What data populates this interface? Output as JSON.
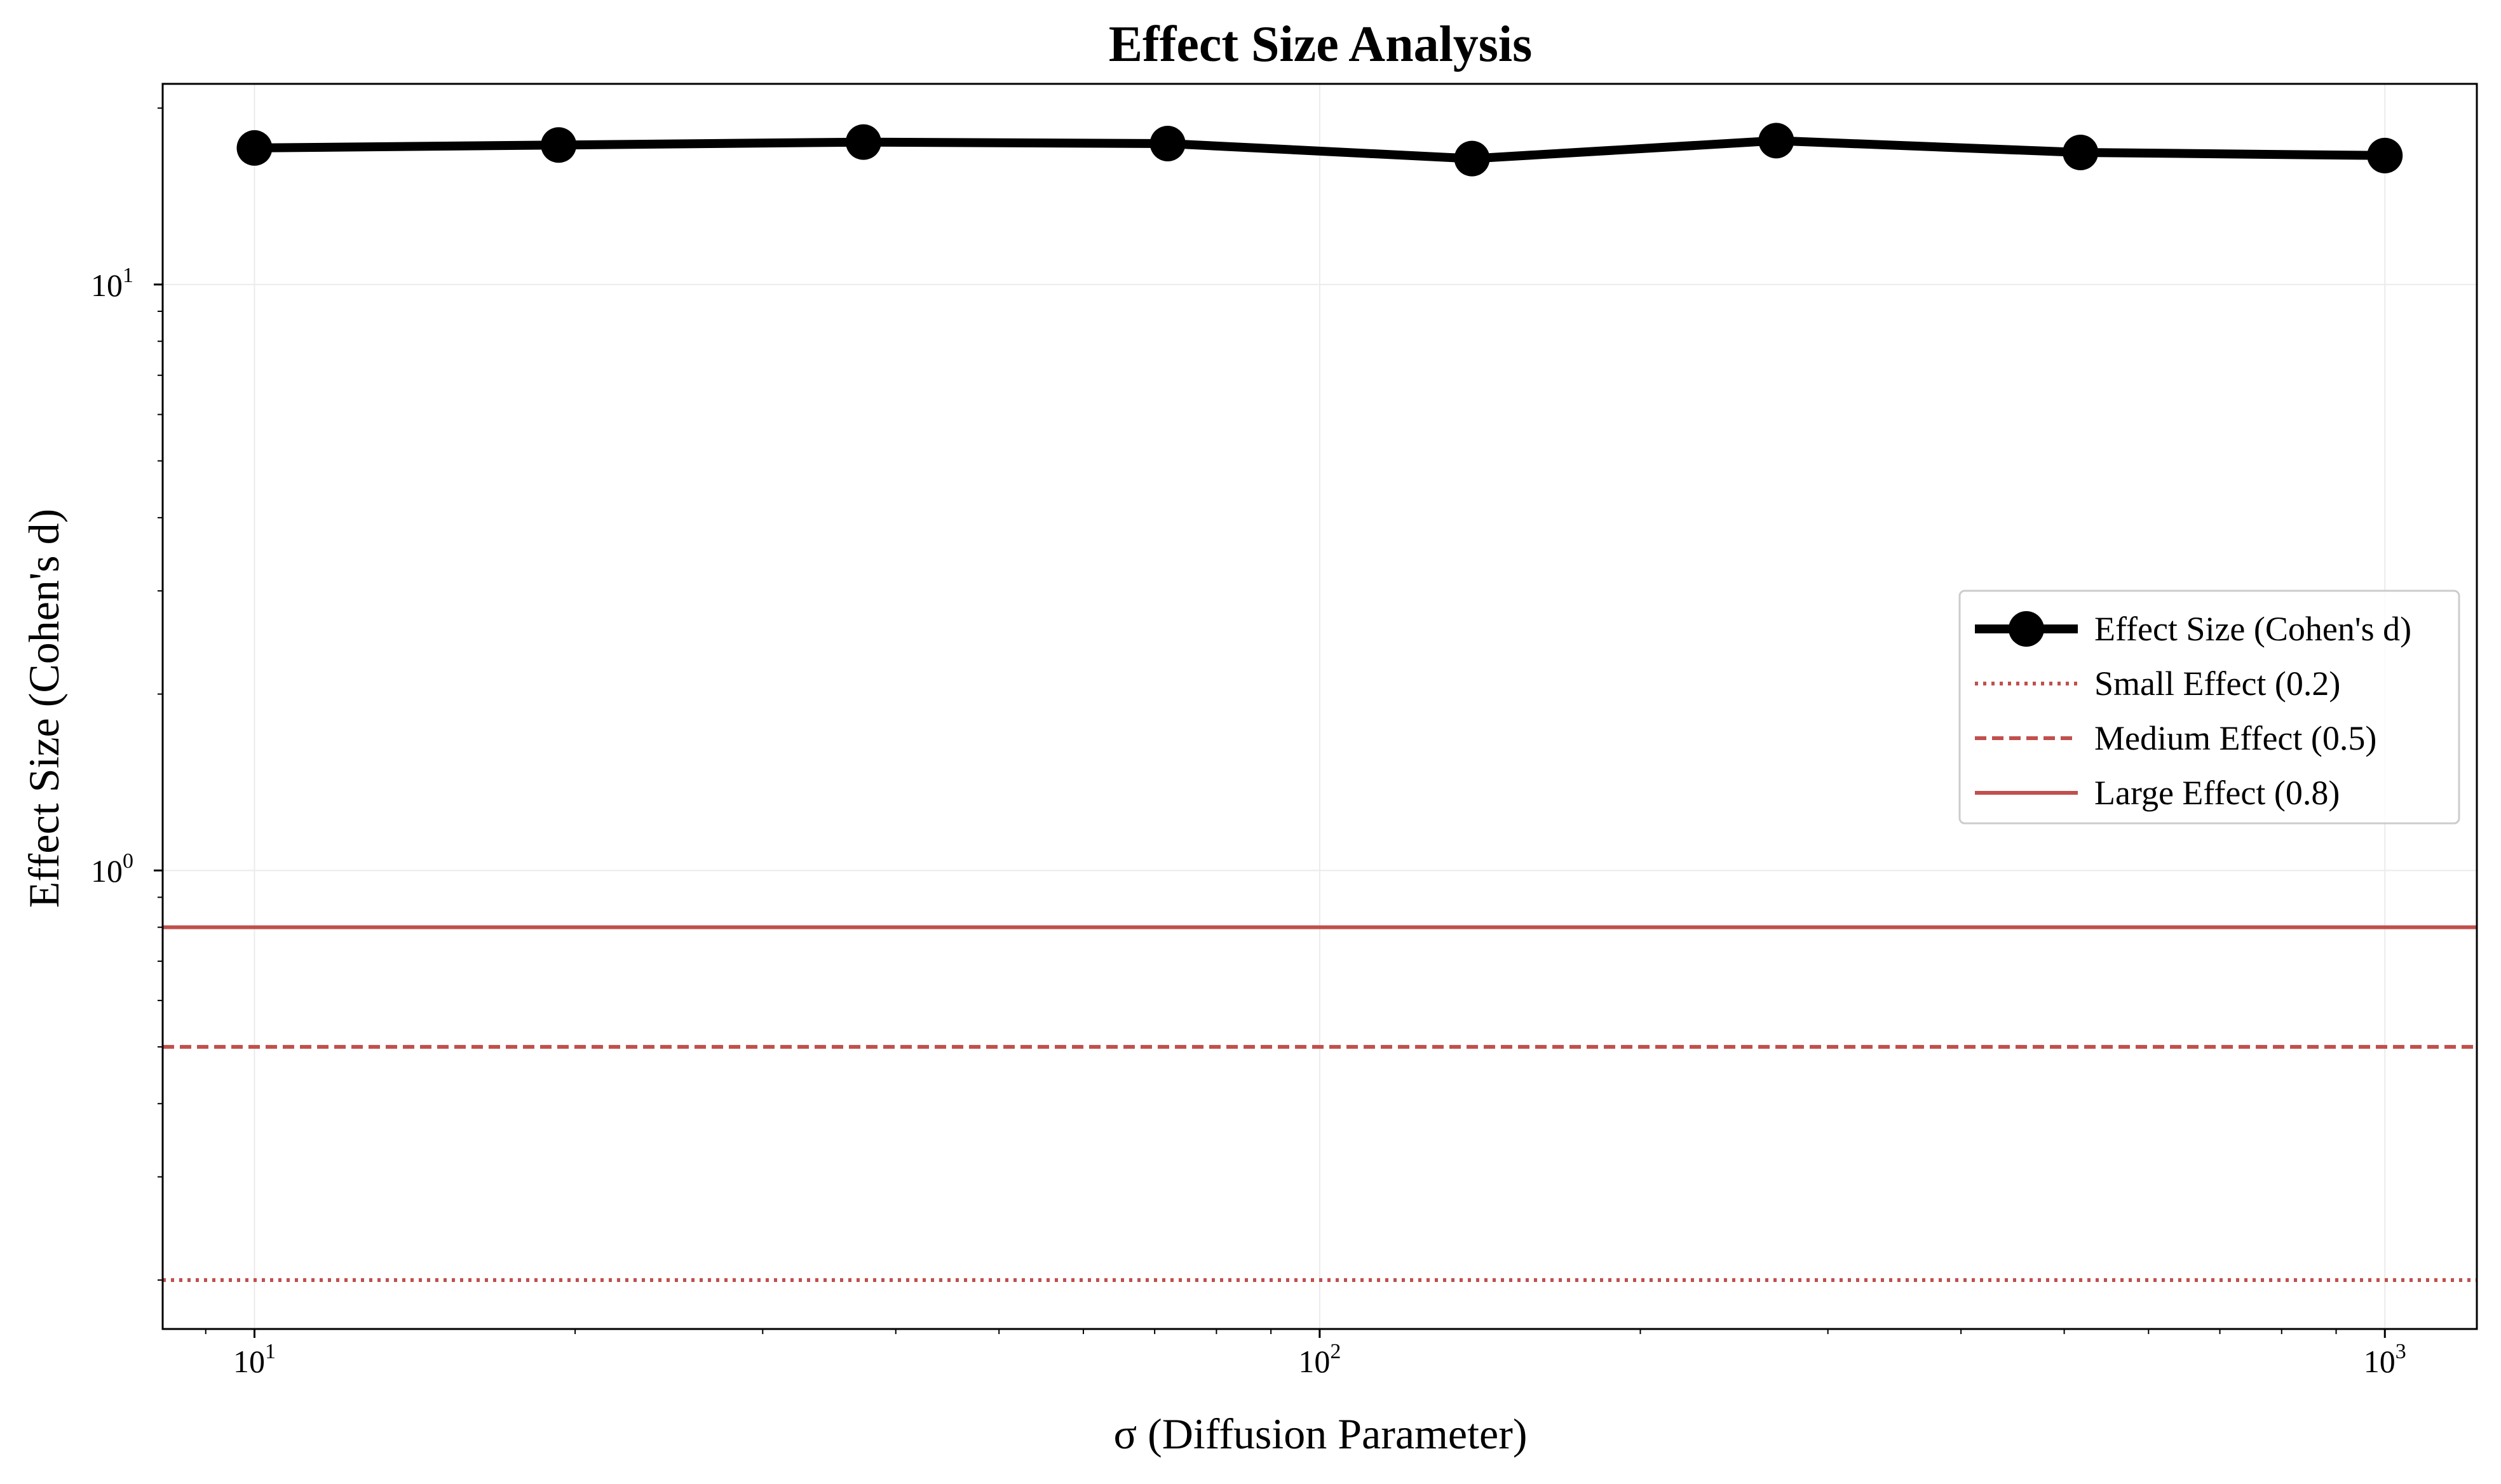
{
  "chart_data": {
    "type": "line",
    "title": "Effect Size Analysis",
    "xlabel": "σ (Diffusion Parameter)",
    "ylabel": "Effect Size (Cohen's d)",
    "xscale": "log",
    "yscale": "log",
    "xlim": [
      8.2,
      1220
    ],
    "ylim": [
      0.165,
      22
    ],
    "x_ticks": [
      {
        "base": "10",
        "exp": "1"
      },
      {
        "base": "10",
        "exp": "2"
      },
      {
        "base": "10",
        "exp": "3"
      }
    ],
    "y_ticks": [
      {
        "base": "10",
        "exp": "0"
      },
      {
        "base": "10",
        "exp": "1"
      }
    ],
    "grid": true,
    "legend_position": "center-right",
    "series": [
      {
        "name": "Effect Size (Cohen's d)",
        "style": "solid-marker",
        "color": "#000000",
        "x": [
          10,
          19.3,
          37.3,
          72,
          139,
          268.3,
          517.9,
          1000
        ],
        "y": [
          17.1,
          17.3,
          17.5,
          17.4,
          16.4,
          17.6,
          16.8,
          16.6
        ]
      }
    ],
    "reference_lines": [
      {
        "name": "Small Effect (0.2)",
        "y": 0.2,
        "style": "dotted",
        "color": "#c0504d"
      },
      {
        "name": "Medium Effect (0.5)",
        "y": 0.5,
        "style": "dashed",
        "color": "#c0504d"
      },
      {
        "name": "Large Effect (0.8)",
        "y": 0.8,
        "style": "solid",
        "color": "#c0504d"
      }
    ]
  }
}
